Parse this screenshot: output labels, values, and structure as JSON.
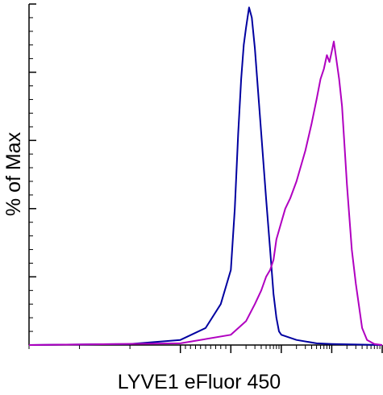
{
  "chart_data": {
    "type": "line",
    "title": "",
    "xlabel": "LYVE1 eFluor 450",
    "ylabel": "% of Max",
    "x_scale": "log",
    "xlim": [
      -300,
      100000
    ],
    "ylim": [
      0,
      100
    ],
    "legend": "none",
    "grid": false,
    "tick_labels_shown": false,
    "series": [
      {
        "color": "#0000a0",
        "x": [
          -300,
          -100,
          0,
          50,
          80,
          100,
          120,
          140,
          160,
          180,
          200,
          230,
          260,
          300,
          400,
          500,
          600,
          700,
          800,
          900,
          1000,
          2000,
          5000,
          10000,
          100000
        ],
        "values": [
          0,
          0.3,
          1.5,
          5,
          12,
          22,
          40,
          62,
          78,
          88,
          93,
          99,
          96,
          87,
          62,
          43,
          28,
          15,
          8,
          4,
          3,
          1.5,
          0.5,
          0.3,
          0
        ]
      },
      {
        "color": "#b000c0",
        "x": [
          -300,
          0,
          100,
          200,
          300,
          400,
          500,
          600,
          700,
          800,
          1000,
          1200,
          1500,
          2000,
          3000,
          4000,
          5000,
          6000,
          7000,
          8000,
          9000,
          10000,
          11000,
          12000,
          14000,
          16000,
          18000,
          20000,
          25000,
          30000,
          40000,
          50000,
          70000,
          100000
        ],
        "values": [
          0,
          0.5,
          3,
          7,
          12,
          16,
          20,
          22,
          25,
          31,
          36,
          40,
          43,
          48,
          57,
          65,
          72,
          78,
          81,
          85,
          83,
          86,
          89,
          85,
          78,
          70,
          58,
          47,
          28,
          18,
          5,
          1.5,
          0.3,
          0
        ]
      }
    ]
  }
}
